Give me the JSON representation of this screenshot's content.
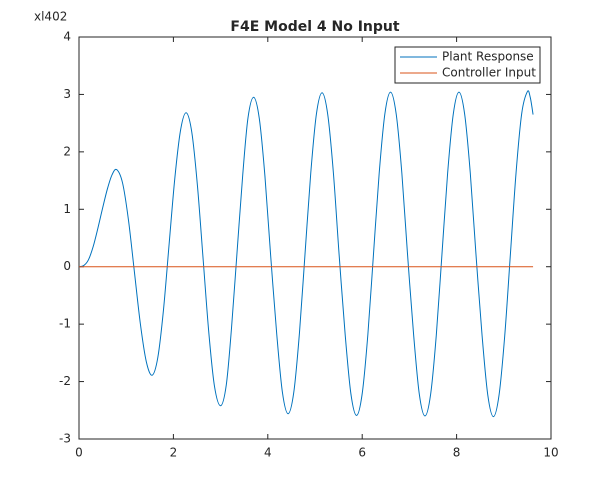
{
  "chart_data": {
    "type": "line",
    "title": "F4E Model 4 No Input",
    "annotation": "xl402",
    "xlim": [
      0,
      10
    ],
    "ylim": [
      -3,
      4
    ],
    "xticks": [
      0,
      2,
      4,
      6,
      8,
      10
    ],
    "yticks": [
      -3,
      -2,
      -1,
      0,
      1,
      2,
      3,
      4
    ],
    "legend_position": "top-right",
    "series": [
      {
        "name": "Plant Response",
        "color": "#0072bd",
        "x": [
          0,
          0.1,
          0.2,
          0.3,
          0.4,
          0.5,
          0.6,
          0.7,
          0.8,
          0.925,
          1.05,
          1.175,
          1.3,
          1.425,
          1.55,
          1.67,
          1.79,
          1.91,
          2.03,
          2.15,
          2.27,
          2.39,
          2.51,
          2.63,
          2.75,
          2.87,
          3.0,
          3.12,
          3.23,
          3.35,
          3.47,
          3.58,
          3.7,
          3.82,
          3.94,
          4.06,
          4.19,
          4.31,
          4.43,
          4.55,
          4.67,
          4.79,
          4.91,
          5.03,
          5.15,
          5.27,
          5.39,
          5.51,
          5.64,
          5.76,
          5.88,
          6.0,
          6.12,
          6.24,
          6.36,
          6.48,
          6.6,
          6.72,
          6.84,
          6.96,
          7.09,
          7.21,
          7.33,
          7.45,
          7.57,
          7.69,
          7.81,
          7.93,
          8.05,
          8.17,
          8.29,
          8.41,
          8.54,
          8.66,
          8.78,
          8.9,
          9.02,
          9.14,
          9.26,
          9.38,
          9.5,
          9.56,
          9.62
        ],
        "values": [
          0,
          0.02,
          0.12,
          0.35,
          0.67,
          1.02,
          1.35,
          1.6,
          1.69,
          1.45,
          0.8,
          -0.1,
          -0.995,
          -1.65,
          -1.89,
          -1.58,
          -0.75,
          0.4,
          1.54,
          2.37,
          2.68,
          2.34,
          1.405,
          0.13,
          -1.145,
          -2.08,
          -2.42,
          -2.06,
          -1.08,
          0.27,
          1.61,
          2.59,
          2.95,
          2.58,
          1.57,
          0.2,
          -1.18,
          -2.19,
          -2.56,
          -2.19,
          -1.16,
          0.24,
          1.63,
          2.66,
          3.03,
          2.65,
          1.63,
          0.22,
          -1.19,
          -2.21,
          -2.59,
          -2.21,
          -1.18,
          0.23,
          1.63,
          2.66,
          3.04,
          2.66,
          1.63,
          0.22,
          -1.19,
          -2.22,
          -2.6,
          -2.22,
          -1.19,
          0.22,
          1.63,
          2.66,
          3.04,
          2.66,
          1.63,
          0.22,
          -1.2,
          -2.23,
          -2.61,
          -2.23,
          -1.2,
          0.22,
          1.64,
          2.67,
          3.05,
          2.95,
          2.65
        ]
      },
      {
        "name": "Controller Input",
        "color": "#d95319",
        "x": [
          0,
          9.62
        ],
        "values": [
          0,
          0
        ]
      }
    ]
  }
}
